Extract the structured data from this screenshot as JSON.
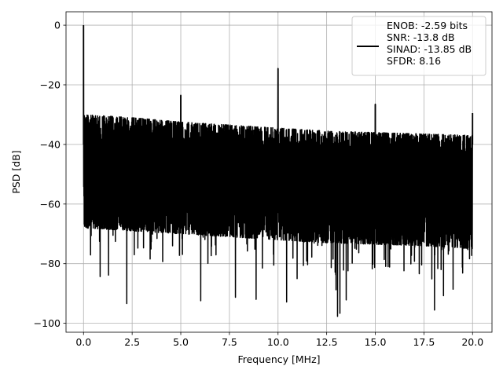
{
  "chart_data": {
    "type": "line",
    "xlabel": "Frequency [MHz]",
    "ylabel": "PSD [dB]",
    "xlim": [
      -0.9,
      21.0
    ],
    "ylim": [
      -103,
      4.5
    ],
    "xticks": [
      0.0,
      2.5,
      5.0,
      7.5,
      10.0,
      12.5,
      15.0,
      17.5,
      20.0
    ],
    "xtick_labels": [
      "0.0",
      "2.5",
      "5.0",
      "7.5",
      "10.0",
      "12.5",
      "15.0",
      "17.5",
      "20.0"
    ],
    "yticks": [
      0,
      -20,
      -40,
      -60,
      -80,
      -100
    ],
    "ytick_labels": [
      "0",
      "−20",
      "−40",
      "−60",
      "−80",
      "−100"
    ],
    "grid": true,
    "series": [
      {
        "color": "#000000",
        "x_range": [
          0.0,
          20.0
        ],
        "noise_envelope": {
          "upper": {
            "x": [
              0.0,
              2.5,
              5.0,
              7.5,
              10.0,
              12.5,
              15.0,
              17.5,
              20.0
            ],
            "y": [
              -30,
              -31,
              -32.5,
              -33.5,
              -34.5,
              -35.5,
              -36,
              -36.5,
              -37
            ]
          },
          "lower": {
            "x": [
              0.0,
              2.5,
              5.0,
              7.5,
              10.0,
              12.5,
              15.0,
              17.5,
              20.0
            ],
            "y": [
              -68,
              -69,
              -70,
              -71,
              -72,
              -73,
              -73.5,
              -74,
              -75
            ]
          },
          "deep_dips_to": -98
        },
        "spikes": [
          {
            "x": 0.0,
            "y": 0
          },
          {
            "x": 5.0,
            "y": -23.5
          },
          {
            "x": 10.0,
            "y": -14.5
          },
          {
            "x": 15.0,
            "y": -26.5
          },
          {
            "x": 20.0,
            "y": -29.5
          }
        ]
      }
    ],
    "legend": {
      "placement": "top-right",
      "entries": [
        "ENOB: -2.59 bits",
        "SNR: -13.8 dB",
        "SINAD: -13.85 dB",
        "SFDR: 8.16"
      ]
    }
  }
}
